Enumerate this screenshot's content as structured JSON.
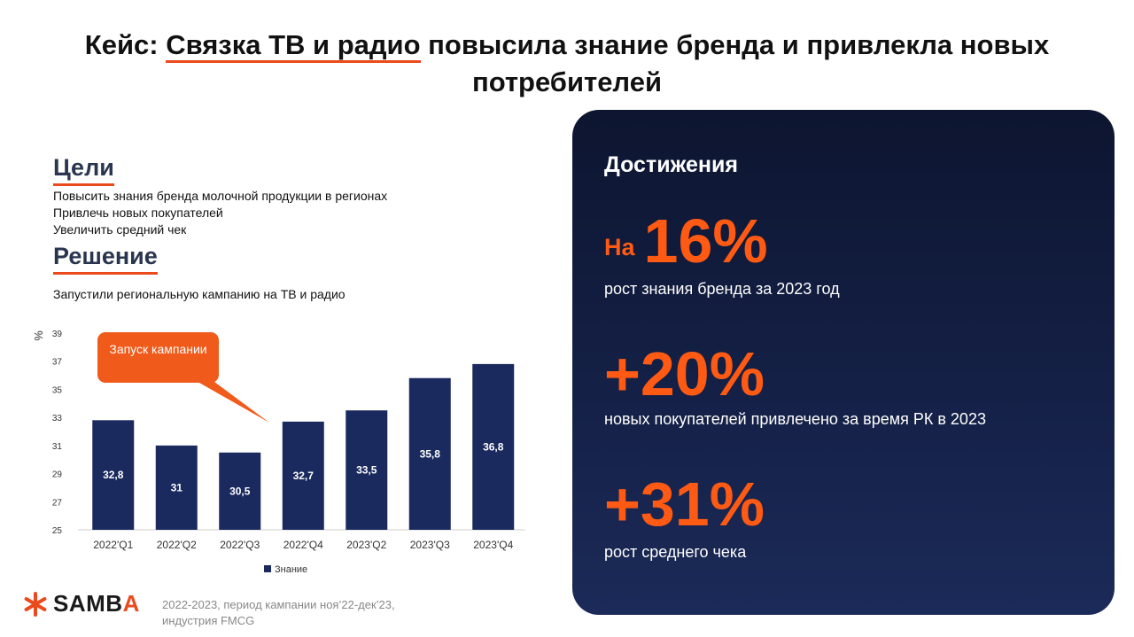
{
  "title": {
    "prefix": "Кейс: ",
    "highlight": "Связка ТВ и радио",
    "rest": " повысила знание бренда и привлекла новых потребителей"
  },
  "goals": {
    "heading": "Цели",
    "items": [
      "Повысить знания бренда молочной продукции в регионах",
      "Привлечь новых покупателей",
      "Увеличить средний чек"
    ]
  },
  "solution": {
    "heading": "Решение",
    "text": "Запустили региональную кампанию на ТВ и радио"
  },
  "callout": {
    "text": "Запуск кампании"
  },
  "chart_data": {
    "type": "bar",
    "categories": [
      "2022'Q1",
      "2022'Q2",
      "2022'Q3",
      "2022'Q4",
      "2023'Q2",
      "2023'Q3",
      "2023'Q4"
    ],
    "series": [
      {
        "name": "Знание",
        "values": [
          32.8,
          31,
          30.5,
          32.7,
          33.5,
          35.8,
          36.8
        ],
        "labels": [
          "32,8",
          "31",
          "30,5",
          "32,7",
          "33,5",
          "35,8",
          "36,8"
        ],
        "color": "#1b2a5e"
      }
    ],
    "ylabel": "%",
    "ylim": [
      25,
      39
    ],
    "yticks": [
      25,
      27,
      29,
      31,
      33,
      35,
      37,
      39
    ],
    "grid": false,
    "legend": "bottom"
  },
  "achievements": {
    "heading": "Достижения",
    "stats": [
      {
        "prefix": "На",
        "value": "16%",
        "desc": "рост знания бренда за 2023 год"
      },
      {
        "prefix": "",
        "value": "+20%",
        "desc": "новых покупателей привлечено за время РК в 2023"
      },
      {
        "prefix": "",
        "value": "+31%",
        "desc": "рост среднего чека"
      }
    ]
  },
  "footer": {
    "logo_main": "SAMB",
    "logo_accent": "A",
    "note_line1": "2022-2023, период кампании ноя’22-дек’23,",
    "note_line2": "индустрия FMCG"
  },
  "colors": {
    "accent": "#ea4a1c",
    "bar": "#1b2a5e",
    "panel": "#111b3c"
  }
}
